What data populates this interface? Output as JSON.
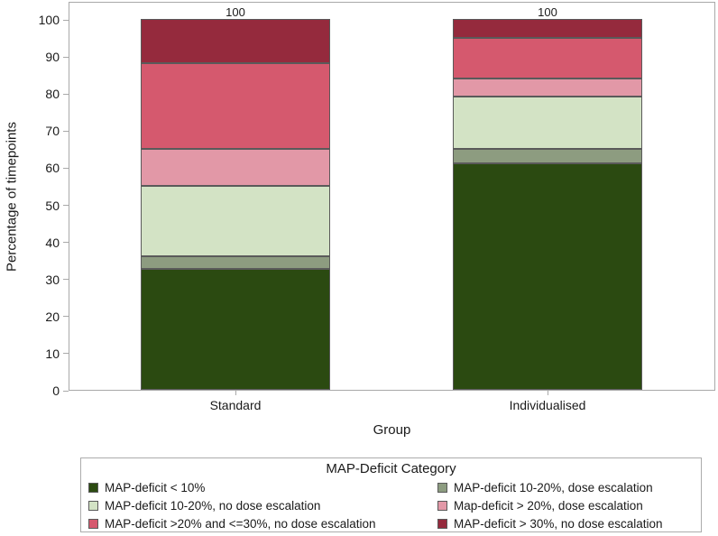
{
  "chart_data": {
    "type": "bar",
    "stacked": true,
    "title": "",
    "xlabel": "Group",
    "ylabel": "Percentage of timepoints",
    "ylim": [
      0,
      100
    ],
    "yticks": [
      0,
      10,
      20,
      30,
      40,
      50,
      60,
      70,
      80,
      90,
      100
    ],
    "grid": false,
    "categories": [
      "Standard",
      "Individualised"
    ],
    "bar_totals": [
      "100",
      "100"
    ],
    "series": [
      {
        "name": "MAP-deficit < 10%",
        "color": "#2b4a11",
        "values": [
          32.5,
          61
        ]
      },
      {
        "name": "MAP-deficit 10-20%, dose escalation",
        "color": "#8d9c80",
        "values": [
          3.5,
          4
        ]
      },
      {
        "name": "MAP-deficit 10-20%, no dose escalation",
        "color": "#d3e3c5",
        "values": [
          19,
          14
        ]
      },
      {
        "name": "Map-deficit > 20%, dose escalation",
        "color": "#e298a7",
        "values": [
          10,
          5
        ]
      },
      {
        "name": "MAP-deficit >20% and <=30%, no dose escalation",
        "color": "#d5596e",
        "values": [
          23,
          11
        ]
      },
      {
        "name": "MAP-deficit > 30%, no dose escalation",
        "color": "#952a3d",
        "values": [
          12,
          5
        ]
      }
    ],
    "legend": {
      "title": "MAP-Deficit Category",
      "position": "bottom",
      "columns": 2
    }
  }
}
